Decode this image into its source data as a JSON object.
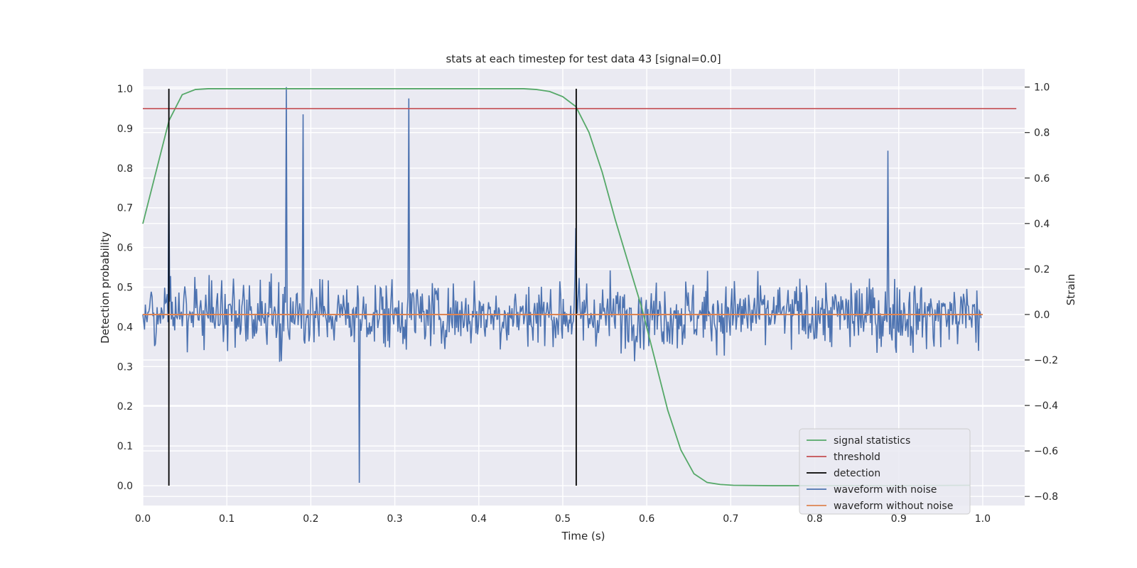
{
  "chart_data": {
    "type": "line",
    "title": "stats at each timestep for test data 43 [signal=0.0]",
    "xlabel": "Time (s)",
    "ylabel": "Detection probability",
    "y2label": "Strain",
    "xlim": [
      0.0,
      1.05
    ],
    "ylim": [
      -0.05,
      1.05
    ],
    "y2lim": [
      -0.84,
      1.08
    ],
    "xticks": [
      "0.0",
      "0.1",
      "0.2",
      "0.3",
      "0.4",
      "0.5",
      "0.6",
      "0.7",
      "0.8",
      "0.9",
      "1.0"
    ],
    "yticks": [
      "0.0",
      "0.1",
      "0.2",
      "0.3",
      "0.4",
      "0.5",
      "0.6",
      "0.7",
      "0.8",
      "0.9",
      "1.0"
    ],
    "y2ticks": [
      "−0.8",
      "−0.6",
      "−0.4",
      "−0.2",
      "0.0",
      "0.2",
      "0.4",
      "0.6",
      "0.8",
      "1.0"
    ],
    "grid": true,
    "legend_position": "lower-right",
    "legend": [
      "signal statistics",
      "threshold",
      "detection",
      "waveform with noise",
      "waveform without noise"
    ],
    "colors": {
      "signal_statistics": "#55a868",
      "threshold": "#c44e52",
      "detection": "#000000",
      "waveform_with_noise": "#4c72b0",
      "waveform_without_noise": "#dd8452",
      "axes_background": "#eaeaf2",
      "grid": "#ffffff"
    },
    "series": [
      {
        "name": "signal statistics",
        "axis": "left",
        "x": [
          0.0,
          0.0156,
          0.0312,
          0.0469,
          0.0625,
          0.0781,
          0.1,
          0.2,
          0.3,
          0.4,
          0.4531,
          0.4688,
          0.4844,
          0.5,
          0.5156,
          0.5312,
          0.5469,
          0.5625,
          0.5781,
          0.5938,
          0.6094,
          0.625,
          0.6406,
          0.6562,
          0.6719,
          0.6875,
          0.7031,
          0.75,
          0.8,
          0.9,
          0.9844
        ],
        "y": [
          0.66,
          0.79,
          0.92,
          0.985,
          0.998,
          1.0,
          1.0,
          1.0,
          1.0,
          1.0,
          1.0,
          0.998,
          0.993,
          0.98,
          0.955,
          0.89,
          0.79,
          0.67,
          0.56,
          0.45,
          0.32,
          0.19,
          0.09,
          0.03,
          0.008,
          0.003,
          0.001,
          0.0,
          0.0,
          0.0,
          0.001
        ]
      },
      {
        "name": "threshold",
        "axis": "left",
        "x": [
          0.0,
          1.04
        ],
        "y": [
          0.95,
          0.95
        ]
      },
      {
        "name": "detection",
        "axis": "left",
        "vlines": [
          0.031,
          0.516
        ],
        "y": [
          0.0,
          1.0
        ]
      },
      {
        "name": "waveform with noise",
        "axis": "right",
        "x_range": [
          0.0,
          0.998
        ],
        "n_points": 1000,
        "peak_values": [
          {
            "x": 0.171,
            "y": 1.0
          },
          {
            "x": 0.191,
            "y": 0.88
          },
          {
            "x": 0.317,
            "y": 0.95
          },
          {
            "x": 0.887,
            "y": 0.72
          },
          {
            "x": 0.258,
            "y": -0.74
          },
          {
            "x": 0.0305,
            "y": 0.62
          },
          {
            "x": 0.515,
            "y": 0.38
          }
        ],
        "y_range": [
          -0.74,
          1.0
        ]
      },
      {
        "name": "waveform without noise",
        "axis": "right",
        "x": [
          0.0,
          1.0
        ],
        "y": [
          0.0,
          0.0
        ]
      }
    ]
  }
}
